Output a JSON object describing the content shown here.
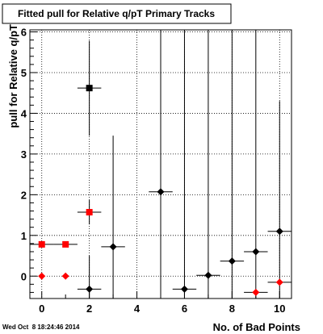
{
  "chart_data": {
    "type": "scatter",
    "title": "Fitted pull for Relative q/pT Primary Tracks",
    "xlabel": "No. of Bad Points",
    "ylabel": "pull for Relative q/pT",
    "xlim": [
      -0.5,
      10.5
    ],
    "ylim": [
      -0.55,
      6.05
    ],
    "x_ticks": [
      0,
      2,
      4,
      6,
      8,
      10
    ],
    "y_ticks": [
      0,
      1,
      2,
      3,
      4,
      5,
      6
    ],
    "grid": true,
    "legend": "none",
    "footer": "Wed Oct  8 18:24:46 2014",
    "series": [
      {
        "marker": "square",
        "color": "#000000",
        "points": [
          {
            "x": 2,
            "y": 4.62,
            "xerr": 0.5,
            "ylo": 3.45,
            "yhi": 5.78
          }
        ]
      },
      {
        "marker": "square",
        "color": "#ff0000",
        "points": [
          {
            "x": 0,
            "y": 0.78,
            "xerr": 0.5
          },
          {
            "x": 1,
            "y": 0.78,
            "xerr": 0.5
          },
          {
            "x": 2,
            "y": 1.57,
            "xerr": 0.5,
            "ylo": 1.27,
            "yhi": 1.87
          }
        ]
      },
      {
        "marker": "diamond",
        "color": "#000000",
        "points": [
          {
            "x": 2,
            "y": -0.32,
            "xerr": 0.5,
            "ylo": -0.55,
            "yhi": 0.5
          },
          {
            "x": 3,
            "y": 0.72,
            "xerr": 0.5,
            "ylo": -0.55,
            "yhi": 3.45
          },
          {
            "x": 5,
            "y": 2.07,
            "xerr": 0.5,
            "ylo": -0.55,
            "yhi": 6.05
          },
          {
            "x": 6,
            "y": -0.32,
            "xerr": 0.5,
            "ylo": -0.55,
            "yhi": 6.05
          },
          {
            "x": 7,
            "y": 0.02,
            "xerr": 0.5,
            "ylo": -0.55,
            "yhi": 6.05
          },
          {
            "x": 8,
            "y": 0.37,
            "xerr": 0.5,
            "ylo": -0.55,
            "yhi": 6.05
          },
          {
            "x": 9,
            "y": 0.6,
            "xerr": 0.5,
            "ylo": -0.55,
            "yhi": 6.05
          },
          {
            "x": 10,
            "y": 1.1,
            "xerr": 0.5,
            "ylo": -0.55,
            "yhi": 4.3
          }
        ]
      },
      {
        "marker": "diamond",
        "color": "#ff0000",
        "points": [
          {
            "x": 0,
            "y": 0.0
          },
          {
            "x": 1,
            "y": 0.0
          },
          {
            "x": 9,
            "y": -0.4,
            "xerr": 0.5
          },
          {
            "x": 10,
            "y": -0.15,
            "xerr": 0.5
          }
        ]
      }
    ]
  }
}
